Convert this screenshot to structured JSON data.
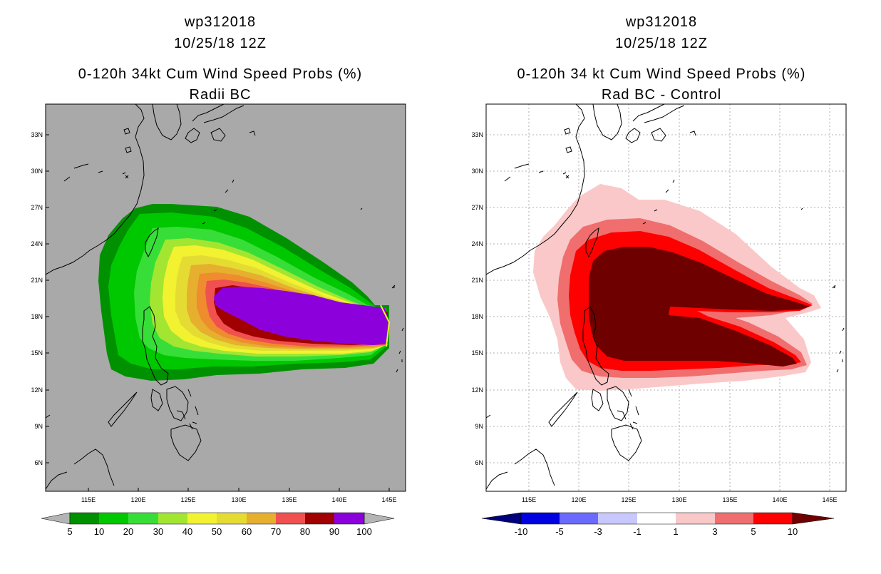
{
  "left_panel": {
    "case_id": "wp312018",
    "datetime": "10/25/18 12Z",
    "product": "0-120h 34kt Cum Wind Speed Probs (%)",
    "subtitle": "Radii BC",
    "background_color": "#a9a9a9",
    "colorbar": {
      "labels": [
        "5",
        "10",
        "20",
        "30",
        "40",
        "50",
        "60",
        "70",
        "80",
        "90",
        "100"
      ],
      "colors": [
        "#009100",
        "#00c800",
        "#38de38",
        "#a2e631",
        "#f2f230",
        "#e4dc33",
        "#e6af2e",
        "#ee8c2e",
        "#f0504f",
        "#a00000",
        "#8c00dc"
      ],
      "end_color": "#b4b4b4"
    }
  },
  "right_panel": {
    "case_id": "wp312018",
    "datetime": "10/25/18 12Z",
    "product": "0-120h 34 kt Cum Wind Speed Probs (%)",
    "subtitle": "Rad BC - Control",
    "background_color": "#ffffff",
    "colorbar": {
      "labels": [
        "-10",
        "-5",
        "-3",
        "-1",
        "1",
        "3",
        "5",
        "10"
      ],
      "colors": [
        "#0000e0",
        "#6a6aff",
        "#c8c8ff",
        "#ffffff",
        "#fac8c8",
        "#f06e6e",
        "#ff0000"
      ],
      "low_end_color": "#00007a",
      "high_end_color": "#6e0000"
    }
  },
  "map_axes": {
    "lon_labels": [
      "115E",
      "120E",
      "125E",
      "130E",
      "135E",
      "140E",
      "145E"
    ],
    "lat_labels": [
      "33N",
      "30N",
      "27N",
      "24N",
      "21N",
      "18N",
      "15N",
      "12N",
      "9N",
      "6N"
    ]
  }
}
